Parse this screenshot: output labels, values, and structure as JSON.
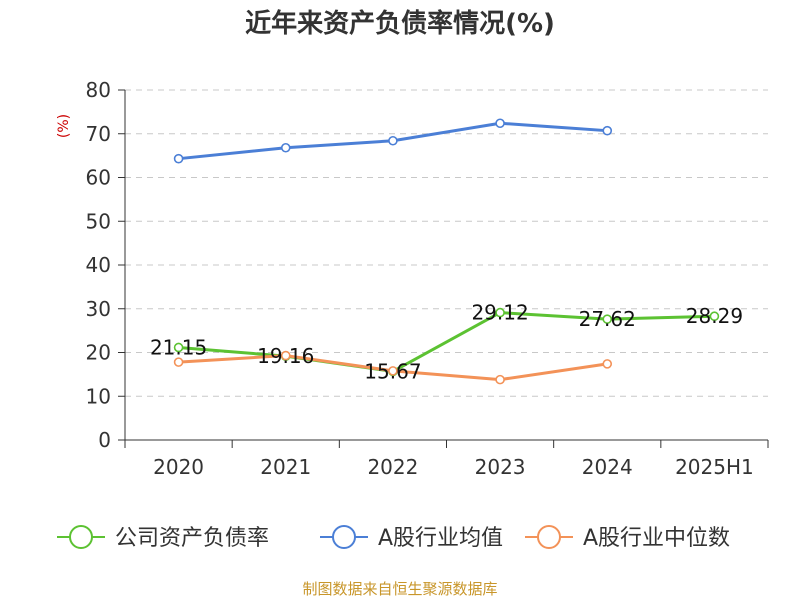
{
  "chart_data": {
    "type": "line",
    "title": "近年来资产负债率情况(%)",
    "ylabel": "(%)",
    "ylim": [
      0,
      80
    ],
    "yticks": [
      0,
      10,
      20,
      30,
      40,
      50,
      60,
      70,
      80
    ],
    "categories": [
      "2020",
      "2021",
      "2022",
      "2023",
      "2024",
      "2025H1"
    ],
    "grid": true,
    "legend_position": "bottom",
    "series": [
      {
        "name": "公司资产负债率",
        "color": "#5cc232",
        "values": [
          21.15,
          19.16,
          15.67,
          29.12,
          27.62,
          28.29
        ],
        "labels": [
          "21.15",
          "19.16",
          "15.67",
          "29.12",
          "27.62",
          "28.29"
        ]
      },
      {
        "name": "A股行业均值",
        "color": "#4b7fd6",
        "values": [
          64.3,
          66.8,
          68.4,
          72.4,
          70.7,
          null
        ]
      },
      {
        "name": "A股行业中位数",
        "color": "#f39258",
        "values": [
          17.8,
          19.3,
          15.8,
          13.8,
          17.4,
          null
        ]
      }
    ],
    "source": "制图数据来自恒生聚源数据库"
  }
}
